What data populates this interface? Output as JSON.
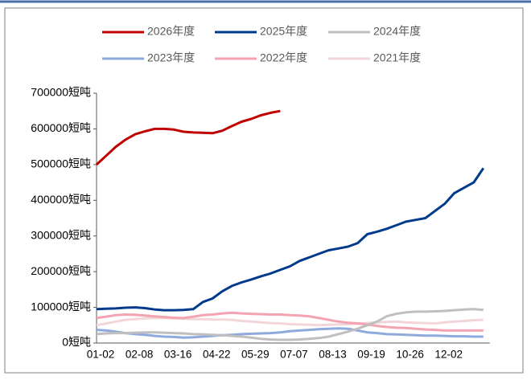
{
  "chart_data": {
    "type": "line",
    "legend": "top",
    "categories": [
      "01-02",
      null,
      null,
      null,
      "02-08",
      null,
      null,
      null,
      "03-16",
      null,
      null,
      null,
      "04-22",
      null,
      null,
      null,
      "05-29",
      null,
      null,
      null,
      "07-07",
      null,
      null,
      null,
      "08-13",
      null,
      null,
      null,
      "09-19",
      null,
      null,
      null,
      "10-26",
      null,
      null,
      null,
      "12-02",
      null,
      null,
      null,
      null
    ],
    "ylim": [
      0,
      700000
    ],
    "yticks": [
      {
        "value": 0,
        "label": "0短吨"
      },
      {
        "value": 100000,
        "label": "100000短吨"
      },
      {
        "value": 200000,
        "label": "200000短吨"
      },
      {
        "value": 300000,
        "label": "300000短吨"
      },
      {
        "value": 400000,
        "label": "400000短吨"
      },
      {
        "value": 500000,
        "label": "500000短吨"
      },
      {
        "value": 600000,
        "label": "600000短吨"
      },
      {
        "value": 700000,
        "label": "700000短吨"
      }
    ],
    "series": [
      {
        "name": "2026年度",
        "color": "#c00000",
        "values": [
          500000,
          525000,
          550000,
          570000,
          585000,
          593000,
          600000,
          600000,
          598000,
          592000,
          590000,
          589000,
          588000,
          595000,
          608000,
          620000,
          628000,
          638000,
          645000,
          650000,
          null,
          null,
          null,
          null,
          null,
          null,
          null,
          null,
          null,
          null,
          null,
          null,
          null,
          null,
          null,
          null,
          null,
          null,
          null,
          null,
          null
        ]
      },
      {
        "name": "2025年度",
        "color": "#003a8c",
        "values": [
          95000,
          96000,
          97000,
          99000,
          100000,
          98000,
          94000,
          92000,
          92000,
          93000,
          95000,
          115000,
          125000,
          145000,
          160000,
          170000,
          178000,
          187000,
          195000,
          205000,
          215000,
          230000,
          240000,
          250000,
          260000,
          265000,
          270000,
          280000,
          305000,
          312000,
          320000,
          330000,
          340000,
          345000,
          350000,
          370000,
          390000,
          420000,
          435000,
          450000,
          490000
        ]
      },
      {
        "name": "2024年度",
        "color": "#bfbfbf",
        "values": [
          25000,
          27000,
          28000,
          28000,
          29000,
          30000,
          30000,
          29000,
          28000,
          27000,
          25000,
          24000,
          23000,
          22000,
          20000,
          18000,
          15000,
          12000,
          10000,
          9000,
          9000,
          10000,
          12000,
          14000,
          18000,
          25000,
          32000,
          40000,
          50000,
          60000,
          75000,
          82000,
          86000,
          88000,
          88000,
          89000,
          90000,
          92000,
          94000,
          95000,
          93000
        ]
      },
      {
        "name": "2023年度",
        "color": "#8ea9db",
        "values": [
          37000,
          35000,
          32000,
          28000,
          25000,
          23000,
          20000,
          18000,
          17000,
          15000,
          16000,
          18000,
          20000,
          22000,
          23000,
          25000,
          26000,
          27000,
          28000,
          30000,
          33000,
          35000,
          37000,
          39000,
          40000,
          41000,
          40000,
          35000,
          30000,
          28000,
          25000,
          24000,
          23000,
          22000,
          21000,
          21000,
          20000,
          19000,
          19000,
          18000,
          18000
        ]
      },
      {
        "name": "2022年度",
        "color": "#f4a3b0",
        "values": [
          70000,
          74000,
          78000,
          80000,
          79000,
          77000,
          75000,
          73000,
          71000,
          70000,
          74000,
          78000,
          80000,
          83000,
          85000,
          83000,
          82000,
          81000,
          80000,
          80000,
          78000,
          77000,
          75000,
          70000,
          65000,
          60000,
          57000,
          55000,
          52000,
          48000,
          45000,
          43000,
          42000,
          40000,
          38000,
          37000,
          35000,
          35000,
          35000,
          35000,
          35000
        ]
      },
      {
        "name": "2021年度",
        "color": "#f2d5d8",
        "values": [
          50000,
          55000,
          60000,
          65000,
          67000,
          69000,
          70000,
          70000,
          69000,
          68000,
          67000,
          67000,
          66000,
          66000,
          65000,
          62000,
          60000,
          58000,
          56000,
          55000,
          53000,
          52000,
          51000,
          50000,
          51000,
          52000,
          53000,
          55000,
          56000,
          58000,
          59000,
          60000,
          58000,
          57000,
          56000,
          55000,
          58000,
          60000,
          62000,
          64000,
          65000
        ]
      }
    ]
  }
}
